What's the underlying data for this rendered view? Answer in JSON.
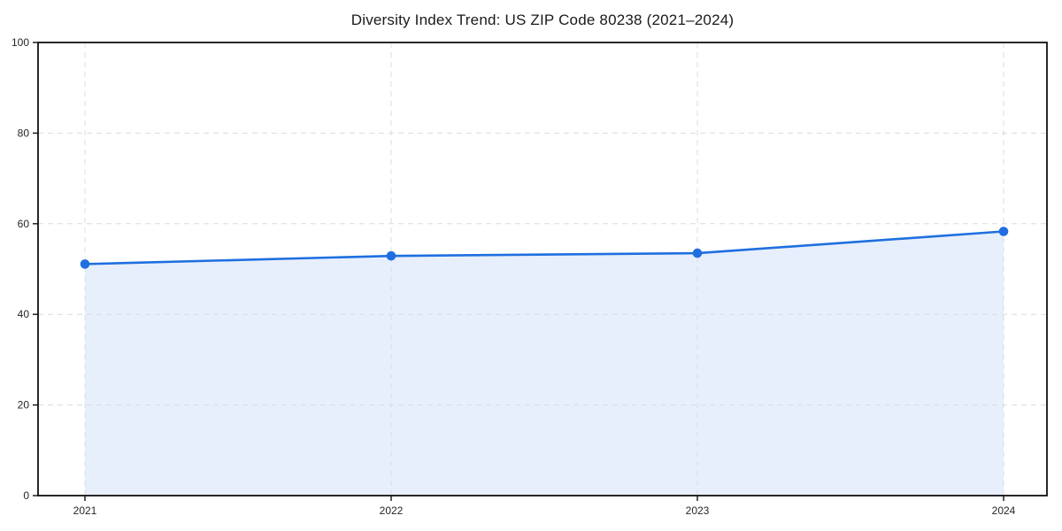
{
  "chart_data": {
    "type": "line",
    "title": "Diversity Index Trend: US ZIP Code 80238 (2021–2024)",
    "categories": [
      "2021",
      "2022",
      "2023",
      "2024"
    ],
    "series": [
      {
        "name": "Diversity Index",
        "values": [
          51.1,
          52.9,
          53.5,
          58.3
        ]
      }
    ],
    "xlabel": "",
    "ylabel": "",
    "ylim": [
      0,
      100
    ],
    "yticks": [
      0,
      20,
      40,
      60,
      80,
      100
    ],
    "ytick_labels": [
      "0",
      "20",
      "40",
      "60",
      "80",
      "100"
    ],
    "grid": true,
    "grid_style": "dashed",
    "legend": false,
    "area_fill": true,
    "markers": true,
    "colors": {
      "line": "#1f6fe0",
      "marker": "#1f6fe0",
      "area_fill": "#e7effc",
      "grid": "#dcdcdc",
      "spine": "#111111",
      "tick_label": "#262626",
      "title": "#1a1a1a",
      "background": "#ffffff"
    }
  }
}
